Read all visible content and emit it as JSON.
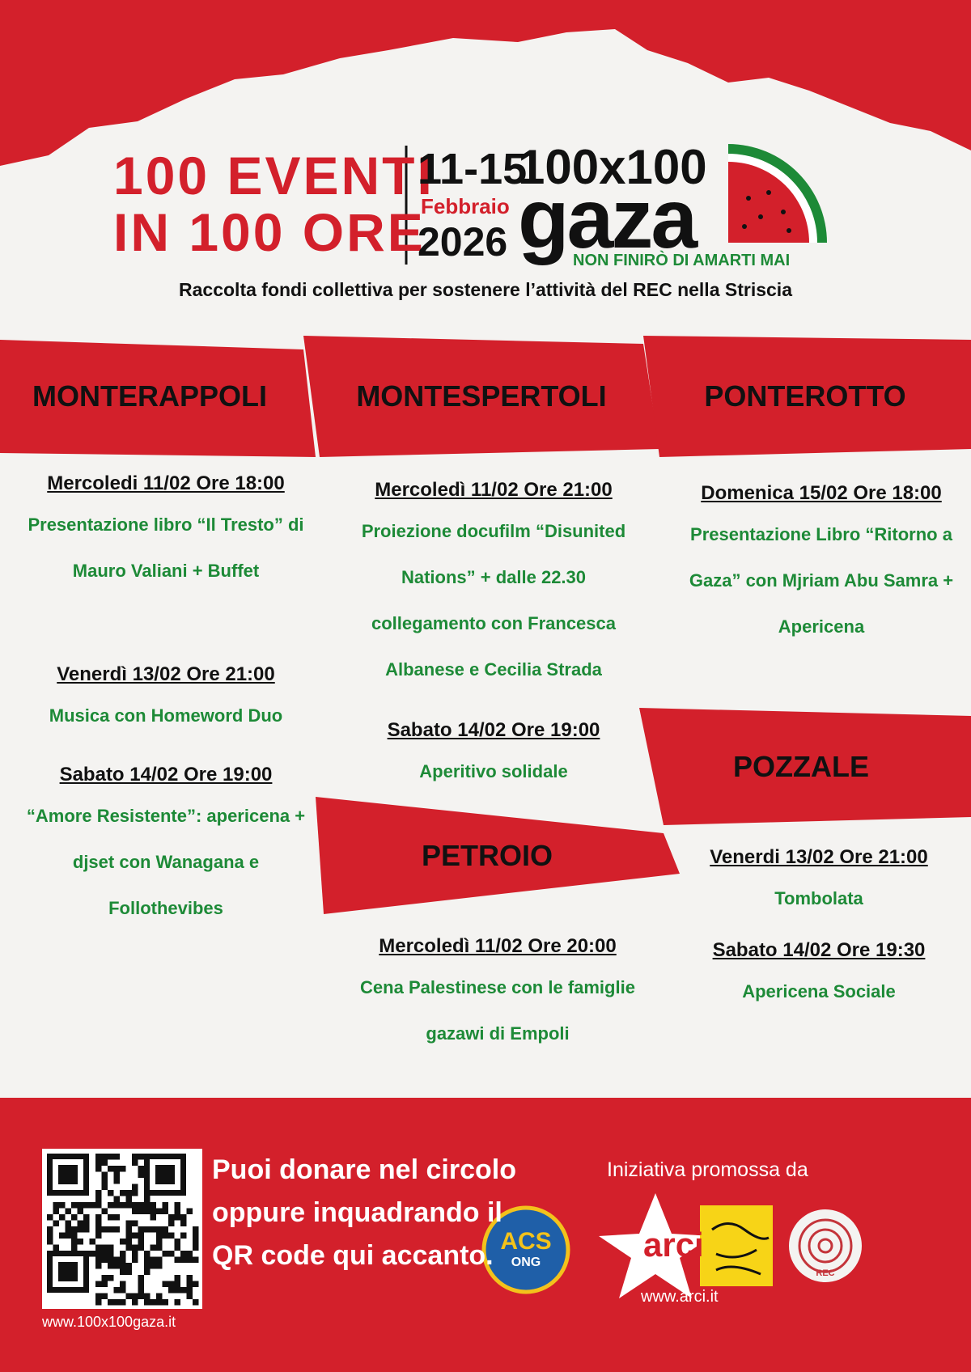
{
  "header": {
    "title_lines": [
      "100 EVENTI",
      "IN 100 ORE"
    ],
    "dates": "11-15",
    "month": "Febbraio",
    "year": "2026",
    "logo_top": "100x100",
    "logo_main": "gaza",
    "tagline": "NON FINIRÒ DI AMARTI MAI",
    "subtitle": "Raccolta fondi collettiva per sostenere l’attività del REC nella Striscia"
  },
  "venues": [
    {
      "name": "MONTERAPPOLI",
      "events": [
        {
          "when": "Mercoledi 11/02 Ore 18:00",
          "description": "Presentazione libro “Il Tresto” di Mauro Valiani + Buffet"
        },
        {
          "when": "Venerdì 13/02 Ore 21:00",
          "description": "Musica con Homeword Duo"
        },
        {
          "when": "Sabato 14/02 Ore 19:00",
          "description": "“Amore Resistente”: apericena + djset con Wanagana e Follothevibes"
        }
      ]
    },
    {
      "name": "MONTESPERTOLI",
      "events": [
        {
          "when": "Mercoledì 11/02 Ore 21:00",
          "description": "Proiezione docufilm “Disunited Nations” + dalle 22.30 collegamento con Francesca Albanese e Cecilia Strada"
        },
        {
          "when": "Sabato 14/02 Ore 19:00",
          "description": "Aperitivo solidale"
        }
      ]
    },
    {
      "name": "PONTEROTTO",
      "events": [
        {
          "when": "Domenica 15/02 Ore 18:00",
          "description": "Presentazione Libro “Ritorno a Gaza” con Mjriam Abu Samra + Apericena"
        }
      ]
    },
    {
      "name": "POZZALE",
      "events": [
        {
          "when": "Venerdi 13/02 Ore 21:00",
          "description": "Tombolata"
        },
        {
          "when": "Sabato 14/02 Ore 19:30",
          "description": "Apericena Sociale"
        }
      ]
    },
    {
      "name": "PETROIO",
      "events": [
        {
          "when": "Mercoledì 11/02 Ore 20:00",
          "description": "Cena Palestinese con le famiglie gazawi di Empoli"
        }
      ]
    }
  ],
  "footer": {
    "donate_text": "Puoi donare nel circolo oppure inquadrando il QR code qui accanto.",
    "website": "www.100x100gaza.it",
    "promoted_by": "Iniziativa promossa da",
    "partners": [
      "ACS",
      "ONG",
      "arci",
      "www.arci.it",
      "REC"
    ]
  }
}
